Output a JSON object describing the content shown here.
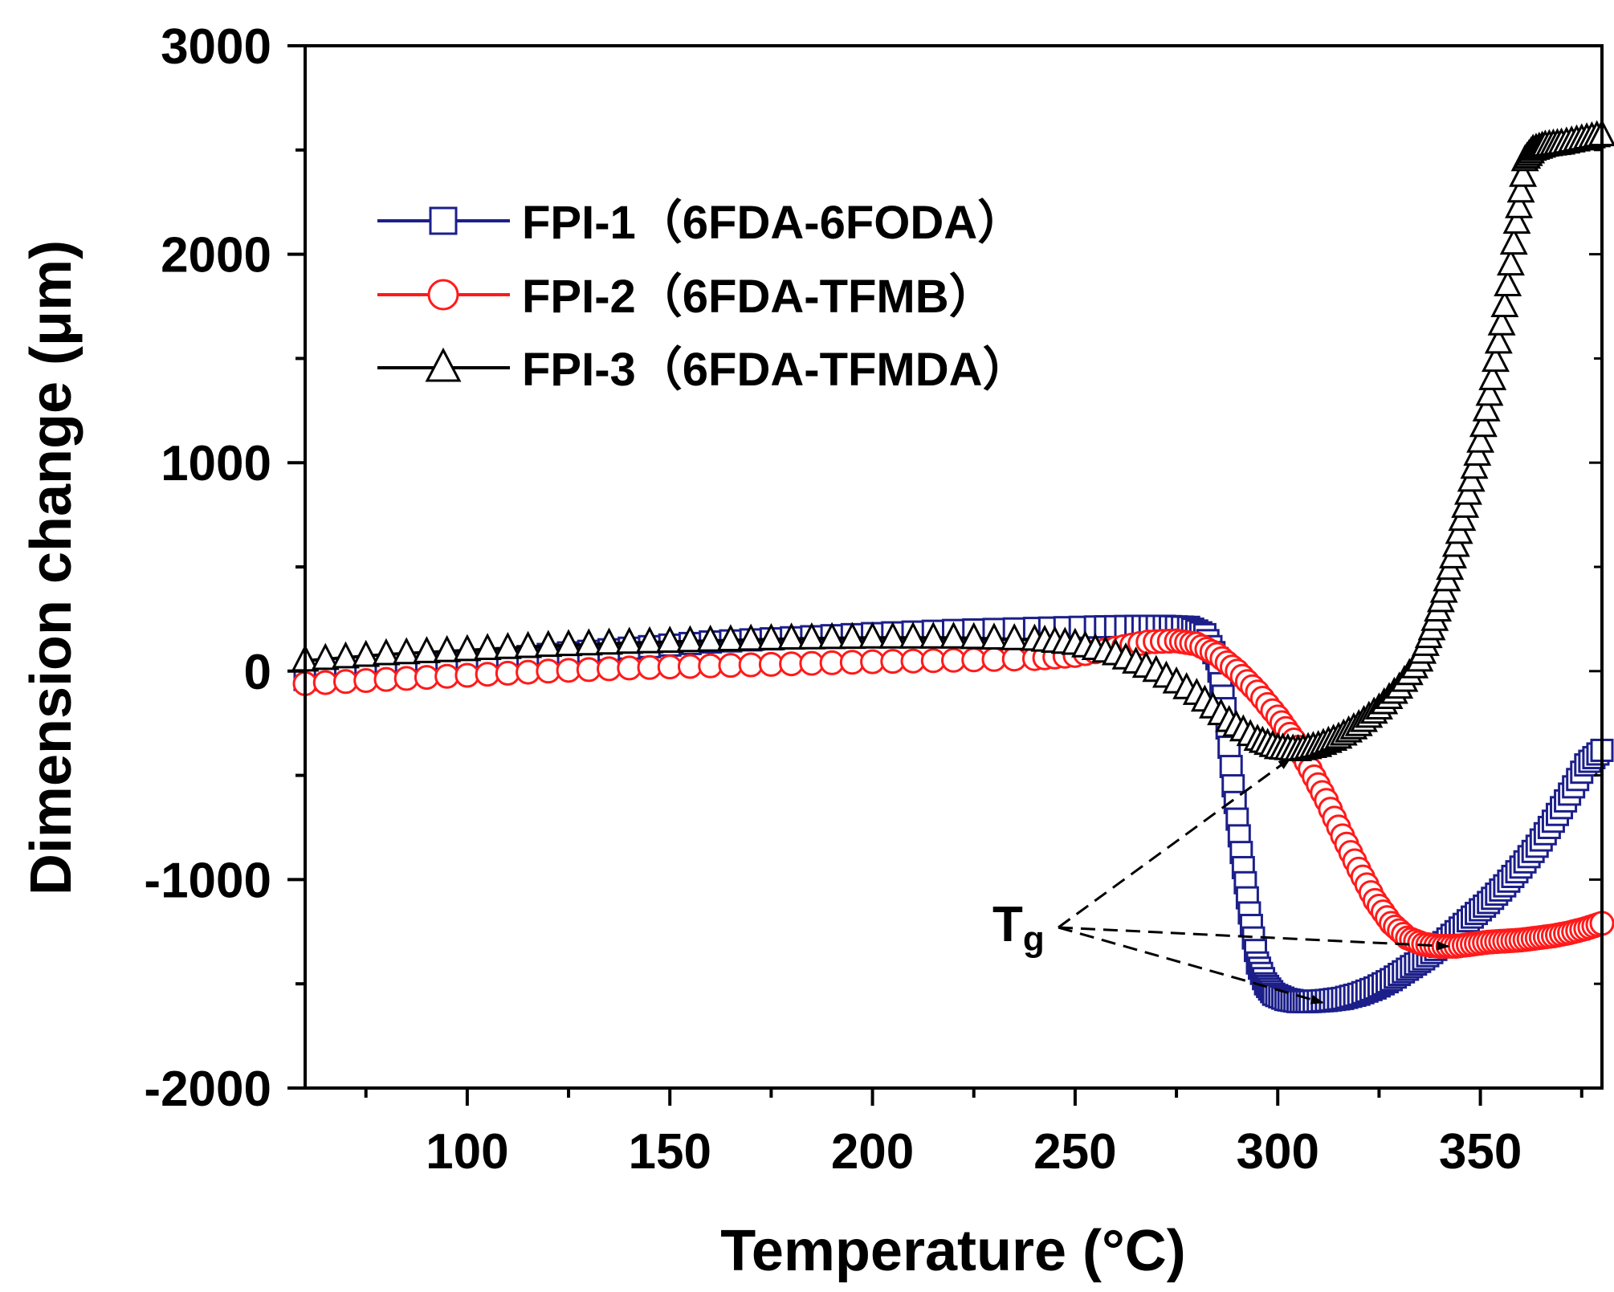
{
  "chart_data": {
    "type": "line",
    "title": "",
    "xlabel": "Temperature (°C)",
    "ylabel": "Dimension change (μm)",
    "xlim": [
      60,
      380
    ],
    "ylim": [
      -2000,
      3000
    ],
    "x_ticks": [
      100,
      150,
      200,
      250,
      300,
      350
    ],
    "y_ticks": [
      -2000,
      -1000,
      0,
      1000,
      2000,
      3000
    ],
    "legend_position": "top-left",
    "series": [
      {
        "name": "FPI-1（6FDA-6FODA）",
        "color": "#1c1f8a",
        "marker": "square",
        "x": [
          60,
          80,
          100,
          120,
          140,
          160,
          180,
          200,
          220,
          240,
          255,
          265,
          272,
          278,
          282,
          285,
          287,
          289,
          291,
          293,
          295,
          297,
          299,
          302,
          305,
          308,
          312,
          316,
          320,
          324,
          328,
          332,
          336,
          340,
          344,
          348,
          352,
          356,
          360,
          364,
          368,
          372,
          376,
          380
        ],
        "y": [
          -40,
          0,
          40,
          80,
          110,
          140,
          160,
          180,
          195,
          205,
          212,
          215,
          215,
          210,
          175,
          60,
          -180,
          -550,
          -870,
          -1160,
          -1400,
          -1500,
          -1550,
          -1575,
          -1585,
          -1585,
          -1580,
          -1570,
          -1550,
          -1520,
          -1480,
          -1430,
          -1380,
          -1320,
          -1250,
          -1180,
          -1110,
          -1030,
          -940,
          -840,
          -720,
          -590,
          -450,
          -380
        ]
      },
      {
        "name": "FPI-2（6FDA-TFMB）",
        "color": "#ff1a1a",
        "marker": "circle",
        "x": [
          60,
          80,
          100,
          120,
          140,
          160,
          180,
          200,
          220,
          240,
          250,
          260,
          268,
          275,
          280,
          285,
          290,
          295,
          300,
          304,
          308,
          312,
          316,
          320,
          324,
          328,
          332,
          336,
          340,
          344,
          348,
          352,
          356,
          360,
          364,
          368,
          372,
          376,
          380
        ],
        "y": [
          -60,
          -40,
          -20,
          0,
          15,
          25,
          35,
          45,
          52,
          60,
          75,
          110,
          140,
          145,
          130,
          80,
          0,
          -100,
          -220,
          -330,
          -470,
          -620,
          -790,
          -950,
          -1100,
          -1210,
          -1280,
          -1310,
          -1320,
          -1320,
          -1310,
          -1300,
          -1295,
          -1290,
          -1280,
          -1270,
          -1255,
          -1235,
          -1210
        ]
      },
      {
        "name": "FPI-3（6FDA-TFMDA）",
        "color": "#000000",
        "marker": "triangle",
        "x": [
          60,
          80,
          100,
          120,
          140,
          160,
          180,
          200,
          220,
          240,
          250,
          260,
          270,
          280,
          288,
          295,
          300,
          305,
          310,
          315,
          320,
          325,
          330,
          335,
          338,
          341,
          344,
          347,
          350,
          353,
          356,
          359,
          361,
          363,
          366,
          370,
          375,
          380
        ],
        "y": [
          50,
          80,
          100,
          120,
          135,
          145,
          155,
          160,
          160,
          150,
          130,
          80,
          0,
          -110,
          -240,
          -330,
          -370,
          -380,
          -360,
          -320,
          -260,
          -180,
          -80,
          50,
          200,
          380,
          600,
          850,
          1100,
          1400,
          1750,
          2150,
          2450,
          2500,
          2520,
          2530,
          2550,
          2570
        ]
      }
    ],
    "annotations": [
      {
        "text": "T",
        "subscript": "g",
        "label": "Tg",
        "points_to": [
          [
            303,
            -420
          ],
          [
            311,
            -1590
          ],
          [
            342,
            -1320
          ]
        ]
      }
    ]
  }
}
